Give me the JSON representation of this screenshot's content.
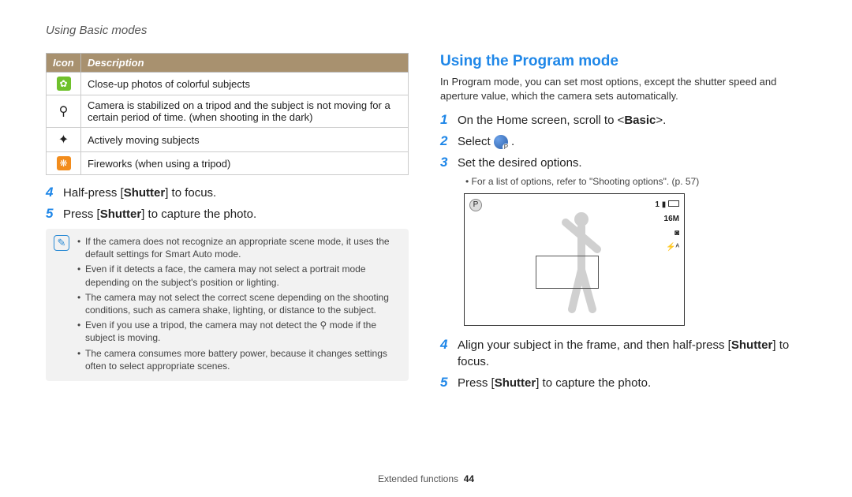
{
  "header": "Using Basic modes",
  "table": {
    "head_icon": "Icon",
    "head_desc": "Description",
    "rows": [
      {
        "icon_class": "ic-green",
        "glyph": "✿",
        "desc": "Close-up photos of colorful subjects"
      },
      {
        "icon_class": "",
        "glyph": "⚲",
        "desc": "Camera is stabilized on a tripod and the subject is not moving for a certain period of time. (when shooting in the dark)"
      },
      {
        "icon_class": "",
        "glyph": "✦",
        "desc": "Actively moving subjects"
      },
      {
        "icon_class": "ic-orange",
        "glyph": "❋",
        "desc": "Fireworks (when using a tripod)"
      }
    ]
  },
  "left_steps": {
    "s4_num": "4",
    "s4_pre": "Half-press [",
    "s4_bold": "Shutter",
    "s4_post": "] to focus.",
    "s5_num": "5",
    "s5_pre": "Press [",
    "s5_bold": "Shutter",
    "s5_post": "] to capture the photo."
  },
  "note": {
    "items": [
      "If the camera does not recognize an appropriate scene mode, it uses the default settings for Smart Auto mode.",
      "Even if it detects a face, the camera may not select a portrait mode depending on the subject's position or lighting.",
      "The camera may not select the correct scene depending on the shooting conditions, such as camera shake, lighting, or distance to the subject.",
      "Even if you use a tripod, the camera may not detect the ⚲ mode if the subject is moving.",
      "The camera consumes more battery power, because it changes settings often to select appropriate scenes."
    ]
  },
  "right": {
    "heading": "Using the Program mode",
    "intro": "In Program mode, you can set most options, except the shutter speed and aperture value, which the camera sets automatically.",
    "s1_num": "1",
    "s1_pre": "On the Home screen, scroll to <",
    "s1_bold": "Basic",
    "s1_post": ">.",
    "s2_num": "2",
    "s2_text": "Select ",
    "s3_num": "3",
    "s3_text": "Set the desired options.",
    "s3_sub": "For a list of options, refer to \"Shooting options\". (p. 57)",
    "s4_num": "4",
    "s4_pre": "Align your subject in the frame, and then half-press [",
    "s4_bold": "Shutter",
    "s4_post": "] to focus.",
    "s5_num": "5",
    "s5_pre": "Press [",
    "s5_bold": "Shutter",
    "s5_post": "] to capture the photo."
  },
  "preview": {
    "size": "16M",
    "meter": "◙",
    "flash": "⚡ᴬ"
  },
  "footer": {
    "section": "Extended functions",
    "page": "44"
  }
}
